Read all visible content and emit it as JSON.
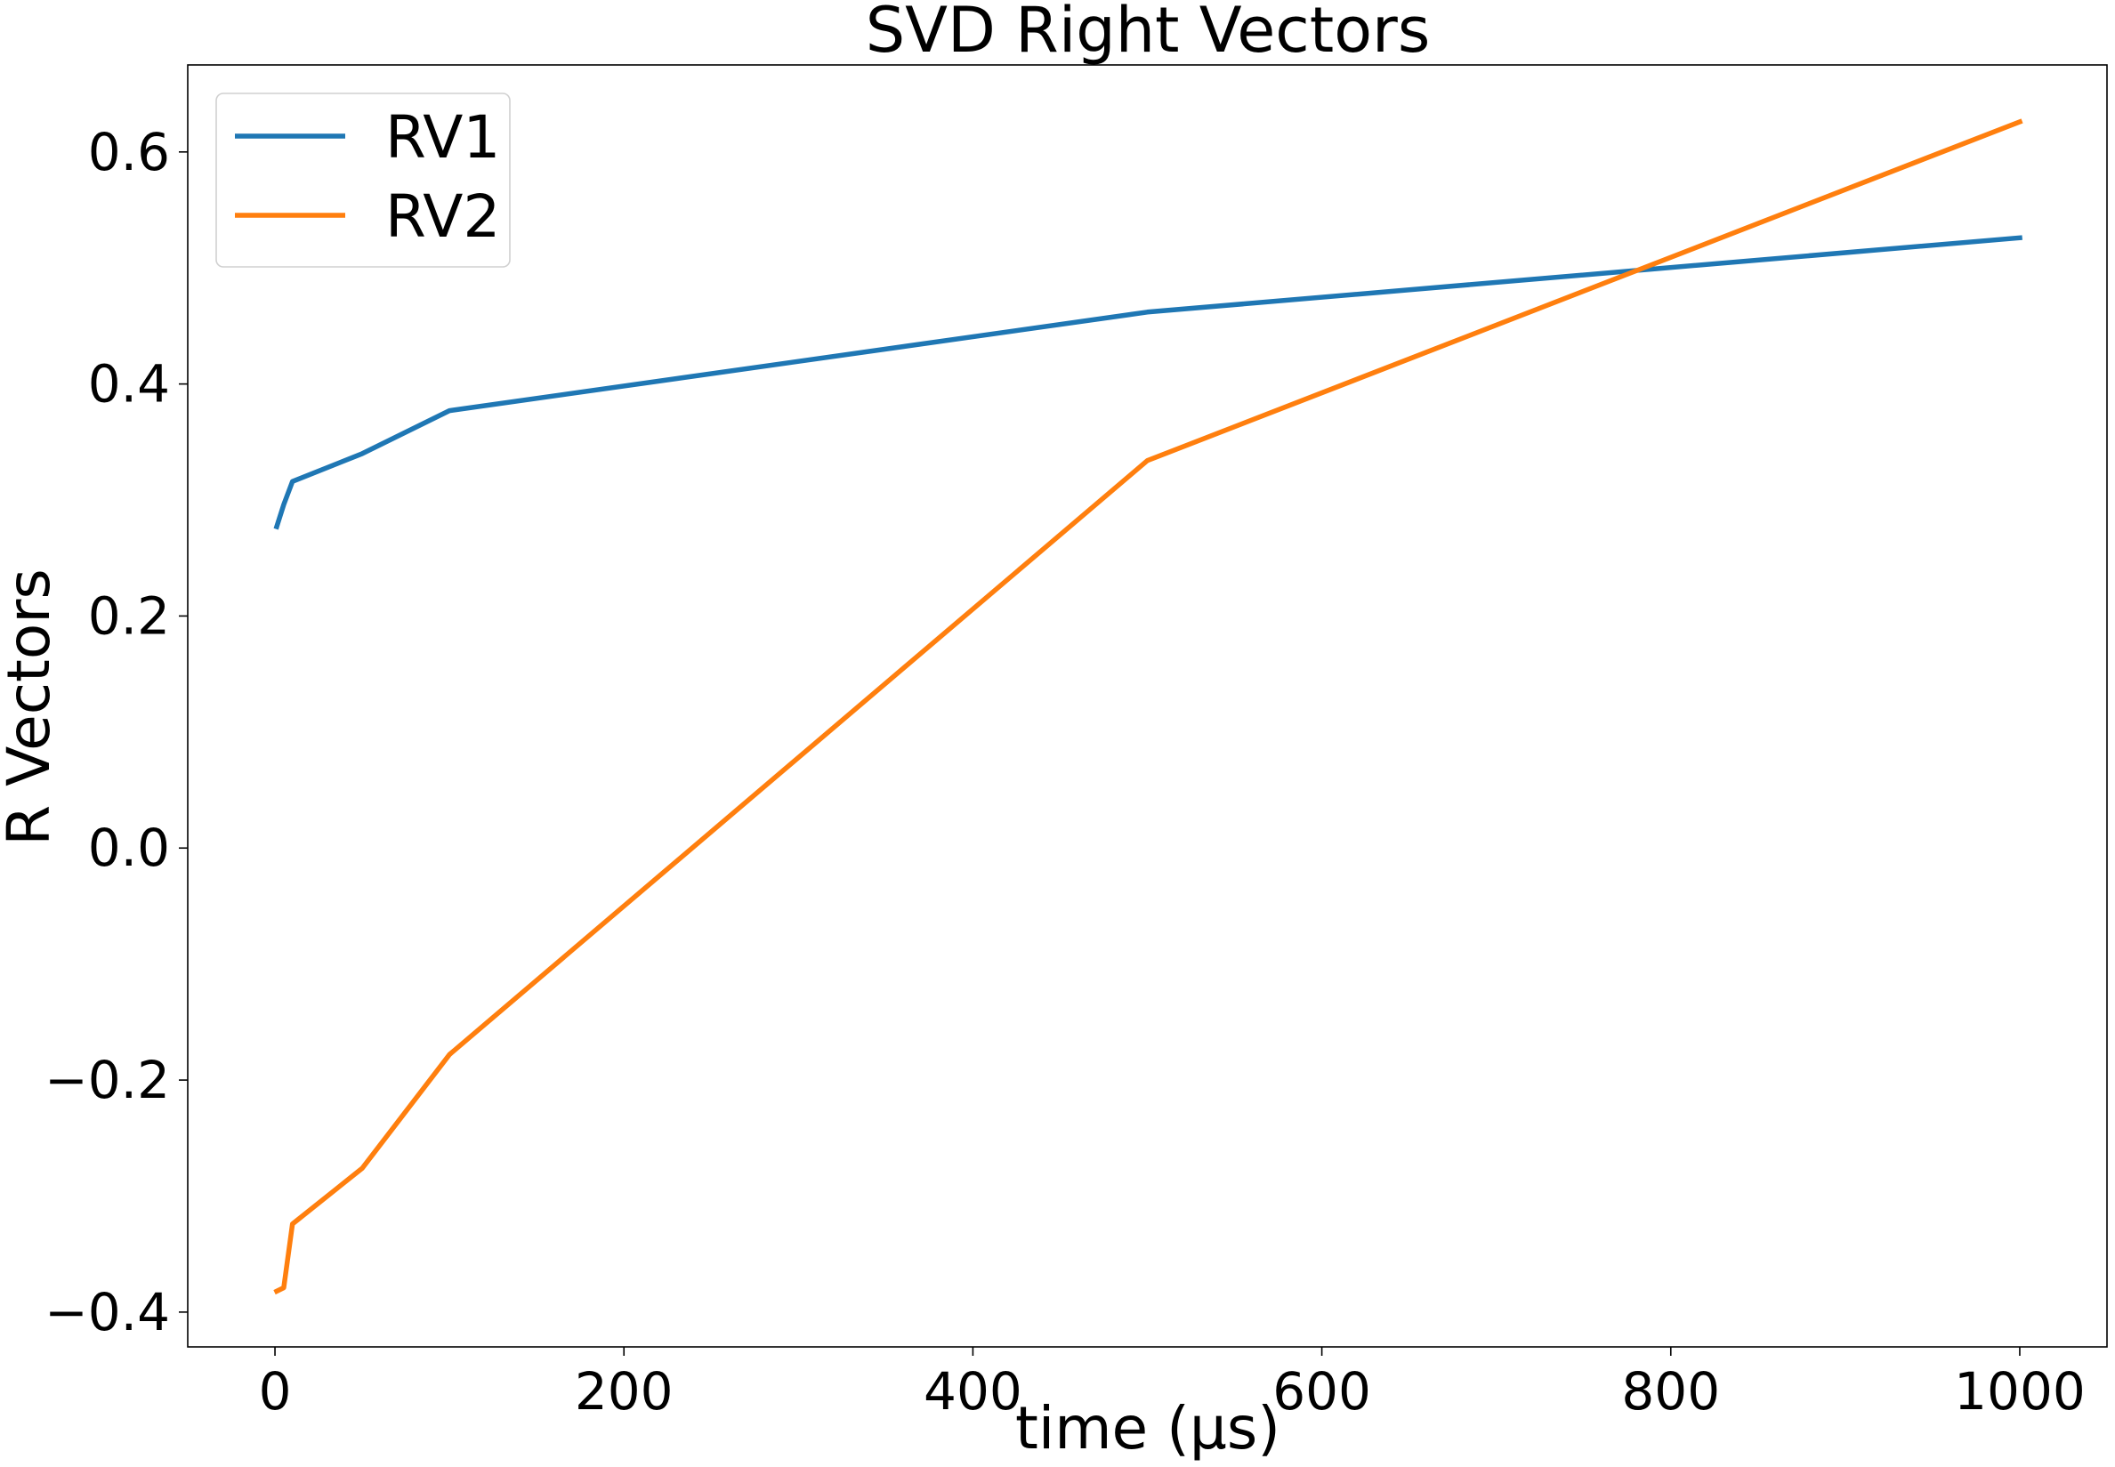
{
  "chart_data": {
    "type": "line",
    "title": "SVD Right Vectors",
    "xlabel": "time (μs)",
    "ylabel": "R Vectors",
    "xlim": [
      -50,
      1050
    ],
    "ylim": [
      -0.43,
      0.675
    ],
    "xticks": [
      0,
      200,
      400,
      600,
      800,
      1000
    ],
    "yticks": [
      -0.4,
      -0.2,
      0.0,
      0.2,
      0.4,
      0.6
    ],
    "xtick_labels": [
      "0",
      "200",
      "400",
      "600",
      "800",
      "1000"
    ],
    "ytick_labels": [
      "−0.4",
      "−0.2",
      "0.0",
      "0.2",
      "0.4",
      "0.6"
    ],
    "grid": false,
    "legend": "top-left",
    "series": [
      {
        "name": "RV1",
        "color": "#1f77b4",
        "x": [
          1,
          5,
          10,
          50,
          100,
          500,
          1000
        ],
        "y": [
          0.277,
          0.296,
          0.316,
          0.34,
          0.377,
          0.462,
          0.526
        ]
      },
      {
        "name": "RV2",
        "color": "#ff7f0e",
        "x": [
          1,
          5,
          10,
          50,
          100,
          500,
          1000
        ],
        "y": [
          -0.382,
          -0.379,
          -0.324,
          -0.276,
          -0.178,
          0.334,
          0.626
        ]
      }
    ]
  }
}
